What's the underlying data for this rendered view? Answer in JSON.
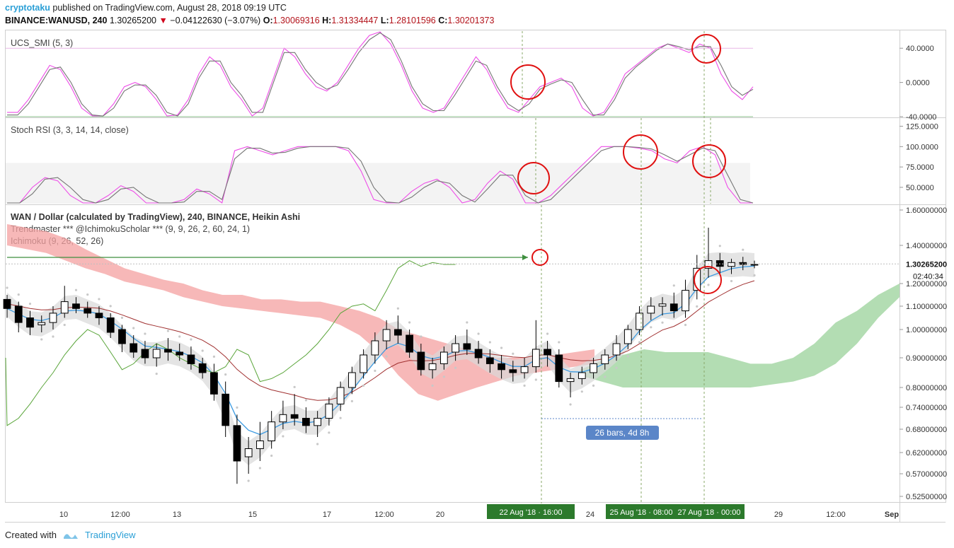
{
  "header": {
    "author": "cryptotaku",
    "published": "published on TradingView.com, August 28, 2018 09:19 UTC",
    "symbol": "BINANCE:WANUSD, 240",
    "price": "1.30265200",
    "change_arrow": "▼",
    "change": "−0.04122630 (−3.07%)",
    "o_label": "O:",
    "o_value": "1.30069316",
    "h_label": "H:",
    "h_value": "1.31334447",
    "l_label": "L:",
    "l_value": "1.28101596",
    "c_label": "C:",
    "c_value": "1.30201373"
  },
  "footer": {
    "created_with": "Created with",
    "brand": "TradingView"
  },
  "colors": {
    "smi_fast": "#ee4de8",
    "smi_slow": "#757575",
    "rsi_k": "#ee4de8",
    "rsi_d": "#757575",
    "tenkan": "#3d9ae0",
    "kijun": "#a03030",
    "chikou": "#5aa53a",
    "cloud_bear": "#f4a0a0",
    "cloud_bull": "#a6d7a6",
    "annotation_circle": "#e01010",
    "date_label_bg": "#2c7a2c",
    "measure_bg": "#5b86c8"
  },
  "chart_data": [
    {
      "type": "line",
      "title": "UCS_SMI (5, 3)",
      "ylim": [
        -40,
        60
      ],
      "yticks": [
        "40.0000",
        "0.0000",
        "-40.0000"
      ],
      "series": [
        {
          "name": "",
          "values": [
            -35,
            -35,
            -20,
            0,
            20,
            15,
            -5,
            -30,
            -40,
            -40,
            -25,
            -5,
            0,
            -5,
            -20,
            -40,
            -38,
            -20,
            10,
            30,
            20,
            -5,
            -20,
            -40,
            -30,
            5,
            40,
            30,
            10,
            -5,
            -10,
            0,
            20,
            40,
            55,
            60,
            45,
            20,
            -10,
            -30,
            -35,
            -30,
            -10,
            10,
            30,
            15,
            -10,
            -30,
            -35,
            -20,
            -5,
            0,
            5,
            -5,
            -30,
            -40,
            -35,
            -15,
            10,
            20,
            30,
            40,
            45,
            40,
            35,
            45,
            40,
            10,
            -10,
            -20,
            -5
          ]
        },
        {
          "name": "",
          "values": [
            -38,
            -38,
            -25,
            -5,
            15,
            18,
            0,
            -25,
            -38,
            -40,
            -30,
            -10,
            -3,
            -3,
            -15,
            -35,
            -40,
            -25,
            5,
            25,
            25,
            0,
            -15,
            -35,
            -35,
            0,
            35,
            35,
            15,
            0,
            -8,
            -3,
            15,
            35,
            50,
            58,
            50,
            25,
            -5,
            -25,
            -33,
            -33,
            -15,
            5,
            25,
            20,
            -5,
            -25,
            -33,
            -25,
            -8,
            -2,
            3,
            0,
            -20,
            -38,
            -38,
            -20,
            5,
            18,
            28,
            38,
            45,
            42,
            38,
            42,
            42,
            20,
            -5,
            -15,
            -8
          ]
        }
      ]
    },
    {
      "type": "line",
      "title": "Stoch RSI (3, 3, 14, 14, close)",
      "ylim": [
        30,
        135
      ],
      "yticks": [
        "125.0000",
        "100.0000",
        "75.0000",
        "50.0000"
      ],
      "series": [
        {
          "name": "",
          "values": [
            30,
            30,
            50,
            62,
            58,
            40,
            30,
            30,
            40,
            52,
            45,
            30,
            30,
            30,
            35,
            48,
            42,
            30,
            95,
            100,
            95,
            90,
            95,
            100,
            100,
            100,
            100,
            95,
            70,
            35,
            30,
            30,
            45,
            55,
            60,
            50,
            30,
            35,
            55,
            70,
            60,
            30,
            30,
            40,
            55,
            70,
            85,
            100,
            100,
            100,
            98,
            95,
            85,
            80,
            95,
            100,
            90,
            50,
            30,
            30
          ]
        },
        {
          "name": "",
          "values": [
            30,
            30,
            42,
            60,
            62,
            50,
            35,
            30,
            35,
            48,
            50,
            38,
            30,
            30,
            32,
            45,
            45,
            35,
            85,
            98,
            98,
            92,
            93,
            98,
            100,
            100,
            100,
            98,
            82,
            50,
            32,
            30,
            38,
            50,
            58,
            55,
            40,
            32,
            48,
            65,
            65,
            40,
            30,
            35,
            50,
            65,
            80,
            95,
            100,
            100,
            99,
            97,
            90,
            82,
            90,
            98,
            95,
            65,
            35,
            30
          ]
        }
      ]
    },
    {
      "type": "candlestick",
      "title": "WAN / Dollar (calculated by TradingView), 240, BINANCE, Heikin Ashi",
      "indicators": [
        "Trendmaster *** @IchimokuScholar *** (9, 9, 26, 2, 60, 24, 1)",
        "Ichimoku (9, 26, 52, 26)"
      ],
      "ylim": [
        0.5,
        1.62
      ],
      "yticks": [
        "1.60000000",
        "1.40000000",
        "1.30265200",
        "1.20000000",
        "1.10000000",
        "1.00000000",
        "0.90000000",
        "0.80000000",
        "0.74000000",
        "0.68000000",
        "0.62000000",
        "0.57000000",
        "0.52500000"
      ],
      "last_price": "1.30265200",
      "countdown": "02:40:34",
      "x_ticks": [
        "10",
        "12:00",
        "13",
        "15",
        "17",
        "12:00",
        "20",
        "24",
        "29",
        "12:00",
        "Sep"
      ],
      "candles": [
        [
          1.13,
          1.15,
          1.05,
          1.09
        ],
        [
          1.1,
          1.12,
          0.99,
          1.03
        ],
        [
          1.05,
          1.08,
          0.98,
          1.01
        ],
        [
          1.02,
          1.06,
          0.99,
          1.03
        ],
        [
          1.03,
          1.1,
          1.0,
          1.07
        ],
        [
          1.07,
          1.19,
          1.05,
          1.12
        ],
        [
          1.11,
          1.14,
          1.07,
          1.09
        ],
        [
          1.09,
          1.12,
          1.05,
          1.07
        ],
        [
          1.07,
          1.1,
          1.02,
          1.05
        ],
        [
          1.05,
          1.07,
          0.97,
          0.99
        ],
        [
          1.0,
          1.02,
          0.92,
          0.95
        ],
        [
          0.95,
          0.98,
          0.9,
          0.92
        ],
        [
          0.93,
          0.96,
          0.88,
          0.9
        ],
        [
          0.9,
          0.95,
          0.87,
          0.93
        ],
        [
          0.93,
          0.97,
          0.89,
          0.92
        ],
        [
          0.92,
          0.95,
          0.89,
          0.91
        ],
        [
          0.91,
          0.94,
          0.86,
          0.88
        ],
        [
          0.88,
          0.9,
          0.83,
          0.85
        ],
        [
          0.85,
          0.88,
          0.76,
          0.78
        ],
        [
          0.78,
          0.82,
          0.66,
          0.69
        ],
        [
          0.69,
          0.72,
          0.55,
          0.6
        ],
        [
          0.61,
          0.66,
          0.57,
          0.63
        ],
        [
          0.63,
          0.7,
          0.6,
          0.65
        ],
        [
          0.65,
          0.73,
          0.63,
          0.7
        ],
        [
          0.7,
          0.76,
          0.68,
          0.72
        ],
        [
          0.72,
          0.78,
          0.69,
          0.71
        ],
        [
          0.71,
          0.74,
          0.67,
          0.69
        ],
        [
          0.69,
          0.73,
          0.66,
          0.71
        ],
        [
          0.71,
          0.77,
          0.69,
          0.75
        ],
        [
          0.75,
          0.82,
          0.73,
          0.8
        ],
        [
          0.8,
          0.87,
          0.78,
          0.85
        ],
        [
          0.85,
          0.93,
          0.83,
          0.91
        ],
        [
          0.91,
          0.99,
          0.88,
          0.96
        ],
        [
          0.96,
          1.04,
          0.93,
          1.0
        ],
        [
          1.0,
          1.06,
          0.95,
          0.98
        ],
        [
          0.98,
          1.0,
          0.9,
          0.92
        ],
        [
          0.92,
          0.95,
          0.84,
          0.86
        ],
        [
          0.86,
          0.9,
          0.83,
          0.88
        ],
        [
          0.88,
          0.94,
          0.86,
          0.92
        ],
        [
          0.92,
          0.98,
          0.89,
          0.95
        ],
        [
          0.95,
          1.0,
          0.91,
          0.93
        ],
        [
          0.93,
          0.96,
          0.88,
          0.9
        ],
        [
          0.9,
          0.93,
          0.85,
          0.88
        ],
        [
          0.88,
          0.91,
          0.83,
          0.86
        ],
        [
          0.86,
          0.89,
          0.82,
          0.85
        ],
        [
          0.85,
          0.9,
          0.83,
          0.87
        ],
        [
          0.87,
          1.04,
          0.85,
          0.93
        ],
        [
          0.93,
          0.96,
          0.87,
          0.91
        ],
        [
          0.91,
          0.93,
          0.8,
          0.82
        ],
        [
          0.82,
          0.85,
          0.77,
          0.83
        ],
        [
          0.83,
          0.87,
          0.81,
          0.85
        ],
        [
          0.85,
          0.9,
          0.83,
          0.88
        ],
        [
          0.88,
          0.93,
          0.86,
          0.91
        ],
        [
          0.91,
          0.98,
          0.89,
          0.95
        ],
        [
          0.95,
          1.02,
          0.93,
          1.0
        ],
        [
          1.0,
          1.1,
          0.98,
          1.07
        ],
        [
          1.07,
          1.14,
          1.04,
          1.1
        ],
        [
          1.1,
          1.14,
          1.06,
          1.11
        ],
        [
          1.11,
          1.16,
          1.05,
          1.08
        ],
        [
          1.08,
          1.22,
          1.05,
          1.17
        ],
        [
          1.17,
          1.35,
          1.13,
          1.28
        ],
        [
          1.28,
          1.5,
          1.23,
          1.32
        ],
        [
          1.32,
          1.36,
          1.25,
          1.29
        ],
        [
          1.29,
          1.33,
          1.25,
          1.31
        ],
        [
          1.31,
          1.34,
          1.27,
          1.3
        ],
        [
          1.3,
          1.32,
          1.28,
          1.3
        ]
      ],
      "date_labels": [
        "22  Aug '18  ·  16:00",
        "25 Aug '18 · 08:00",
        "27 Aug '18 · 00:00"
      ],
      "measure_label": "26 bars, 4d 8h"
    }
  ]
}
